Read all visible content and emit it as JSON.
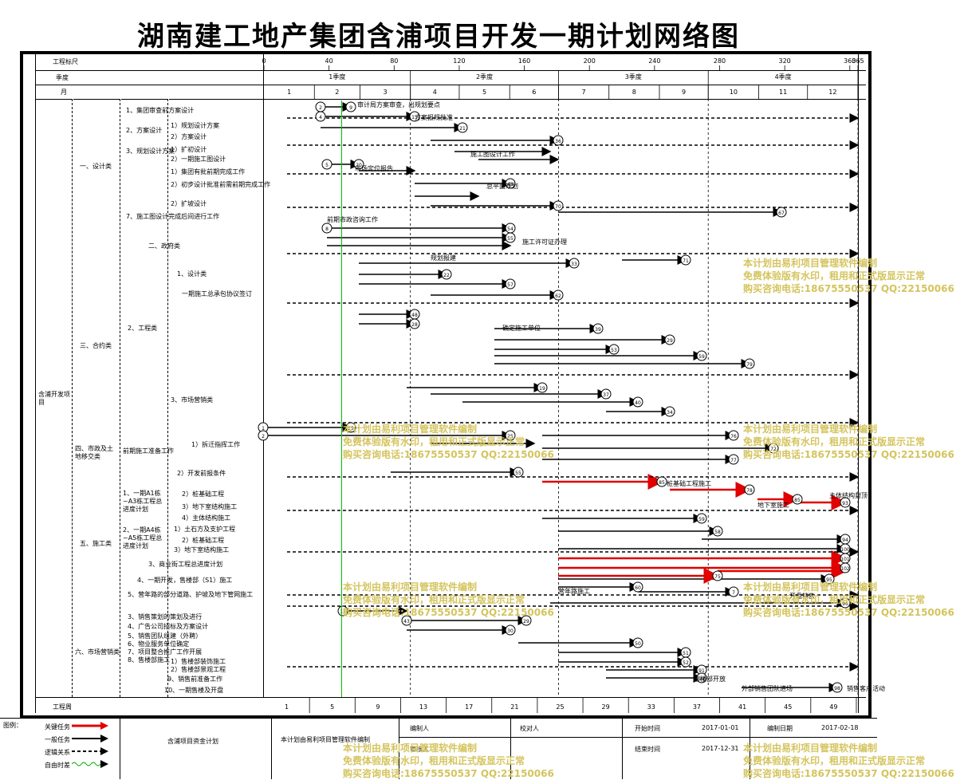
{
  "title": "湖南建工地产集团含浦项目开发一期计划网络图",
  "header": {
    "row1_label": "工程标尺",
    "row2_label": "季度",
    "row3_label": "月",
    "days": [
      "0",
      "40",
      "80",
      "120",
      "160",
      "200",
      "240",
      "280",
      "320",
      "360",
      "365"
    ],
    "quarters": [
      "1季度",
      "2季度",
      "3季度",
      "4季度"
    ],
    "months": [
      "1",
      "2",
      "3",
      "4",
      "5",
      "6",
      "7",
      "8",
      "9",
      "10",
      "11",
      "12"
    ],
    "bottom_label": "工程周",
    "weeks": [
      "1",
      "5",
      "9",
      "13",
      "17",
      "21",
      "25",
      "29",
      "33",
      "37",
      "41",
      "45",
      "49"
    ]
  },
  "tree": {
    "root": "含浦开发项目",
    "groups": [
      {
        "name": "一、设计类",
        "items": [
          "1、集团审查前方案设计",
          "2、方案设计",
          "3、规划设计方案",
          "4、初步设计",
          "5、一期施工图设计",
          "6、集团审核前期完成工作",
          "7、施工图设计完成后间进行工作"
        ]
      },
      {
        "name": "二、政府类",
        "items": []
      },
      {
        "name": "三、合约类",
        "items": [
          "1、设计类",
          "2、工程类",
          "3、市场营销类"
        ]
      },
      {
        "name": "四、市政及土地移交类",
        "items": [
          "前期施工准备工作",
          "1）拆迁指挥工作",
          "2）开发前报条件"
        ]
      },
      {
        "name": "五、施工类",
        "items": [
          "1、一期A1栋~A3栋工程总进度计划",
          "2、一期A4栋~A5栋工程总进度计划",
          "3、商业街工程总进度计划",
          "4、一期开发，售楼部（S1）施工",
          "5、营年路的部分道路、护坡及地下管网施工"
        ]
      },
      {
        "name": "六、市场营销类",
        "items": [
          "1）销售策划的前期及谈判",
          "3、销售策划的策划及进行",
          "4、广告公司招标及方案设计",
          "5、销售团队组建（外聘）",
          "6、物业服务单位确定",
          "7、项目整合推广工作开展",
          "8、售楼部施工",
          "9、销售前准备工作",
          "10、一期售楼及开盘"
        ]
      }
    ],
    "sub_labels": [
      "1）规划设计方案",
      "2）方案设计",
      "1）规划设计方案",
      "2）规划方案设计",
      "1）扩初设计",
      "2）一期施工图设计",
      "1）集团有批前期完成工作",
      "2）初步设计批准前需前期完成工作",
      "1）一期施工图设计",
      "2）扩坡设计",
      "一期施工总承包协议签订",
      "1）桩基础工程",
      "2）桩基础工程",
      "3）地下室结构施工",
      "4）主体结构施工",
      "1）土石方及支护工程",
      "2）桩基础工程",
      "3）地下室结构施工",
      "1）售楼部装饰施工",
      "2）售楼部景观工程"
    ]
  },
  "network_labels": [
    "审计局方案审查，出规划要点",
    "前期市政咨询工作",
    "施工图设计工作",
    "方案报规批准",
    "市场定位报告",
    "总平面规划",
    "规划报建",
    "施工许可证办理",
    "确定施工单位",
    "桩基础工程施工",
    "主体结构封顶",
    "营年路施工",
    "地下室施工",
    "售楼部开放",
    "开盘销售",
    "外部销售团队进场",
    "销售客户活动"
  ],
  "legend": {
    "label": "图例：",
    "items": [
      "关键任务",
      "一般任务",
      "逻辑关系",
      "自由时差"
    ],
    "colors": {
      "critical": "#e00000",
      "normal": "#000000",
      "logic": "#000000",
      "float": "#00b000"
    }
  },
  "footer": {
    "plan_name": "含浦项目资金计划",
    "software": "本计划由易利项目管理软件编制",
    "compiler_label": "编制人",
    "reviewer_label": "校对人",
    "approver_label": "审核人",
    "start_label": "开始时间",
    "start_value": "2017-01-01",
    "end_label": "结束时间",
    "end_value": "2017-12-31",
    "date_label": "编制日期",
    "date_value": "2017-02-18",
    "total_days": "365"
  },
  "watermark": {
    "line1": "本计划由易利项目管理软件编制",
    "line2": "免费体验版有水印，租用和正式版显示正常",
    "line3": "购买咨询电话:18675550537 QQ:22150066"
  }
}
